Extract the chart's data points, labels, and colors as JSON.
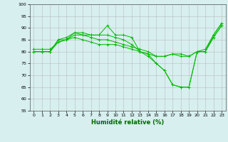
{
  "xlabel": "Humidité relative (%)",
  "xlim": [
    -0.5,
    23.5
  ],
  "ylim": [
    55,
    100
  ],
  "yticks": [
    55,
    60,
    65,
    70,
    75,
    80,
    85,
    90,
    95,
    100
  ],
  "xticks": [
    0,
    1,
    2,
    3,
    4,
    5,
    6,
    7,
    8,
    9,
    10,
    11,
    12,
    13,
    14,
    15,
    16,
    17,
    18,
    19,
    20,
    21,
    22,
    23
  ],
  "background_color": "#d7efef",
  "grid_color": "#bbbbbb",
  "line_color": "#00bb00",
  "series": [
    [
      80,
      80,
      80,
      85,
      85,
      88,
      88,
      87,
      87,
      91,
      87,
      87,
      86,
      80,
      79,
      75,
      72,
      66,
      65,
      65,
      80,
      81,
      87,
      92
    ],
    [
      80,
      80,
      80,
      85,
      86,
      88,
      87,
      87,
      87,
      87,
      86,
      85,
      83,
      80,
      78,
      75,
      72,
      66,
      65,
      65,
      80,
      80,
      87,
      92
    ],
    [
      81,
      81,
      81,
      84,
      85,
      87,
      87,
      86,
      85,
      85,
      84,
      83,
      82,
      81,
      80,
      78,
      78,
      79,
      79,
      78,
      80,
      80,
      86,
      91
    ],
    [
      80,
      80,
      80,
      84,
      85,
      86,
      85,
      84,
      83,
      83,
      83,
      82,
      81,
      80,
      79,
      78,
      78,
      79,
      78,
      78,
      80,
      80,
      86,
      91
    ]
  ]
}
